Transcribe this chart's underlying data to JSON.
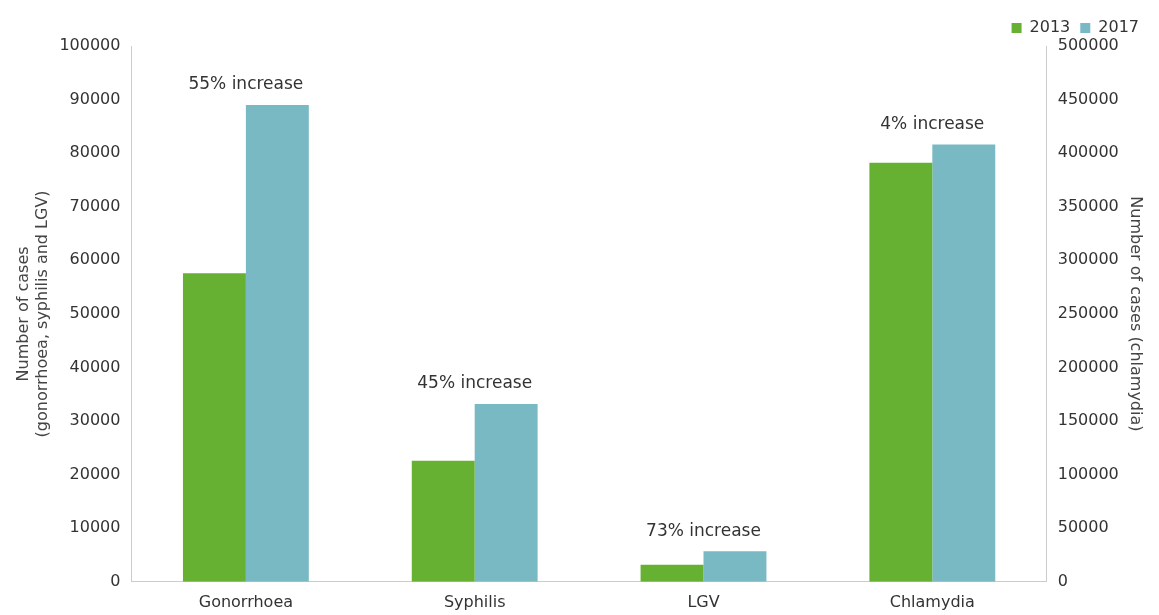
{
  "chart_data": {
    "type": "bar",
    "categories": [
      "Gonorrhoea",
      "Syphilis",
      "LGV",
      "Chlamydia"
    ],
    "ylabel": "Number of cases\n(gonorrhoea, syphilis and LGV)",
    "y2label": "Number of cases (chlamydia)",
    "ylim": [
      0,
      100000
    ],
    "yticks": [
      0,
      10000,
      20000,
      30000,
      40000,
      50000,
      60000,
      70000,
      80000,
      90000,
      100000
    ],
    "y2lim": [
      0,
      500000
    ],
    "y2ticks": [
      0,
      50000,
      100000,
      150000,
      200000,
      250000,
      300000,
      350000,
      400000,
      450000,
      500000
    ],
    "series": [
      {
        "name": "2013",
        "color": "#66b032",
        "values": [
          57600,
          22600,
          3200,
          null
        ]
      },
      {
        "name": "2017",
        "color": "#78b9c4",
        "values": [
          89000,
          33200,
          5700,
          null
        ]
      },
      {
        "color": "#66b032",
        "axis": "y2",
        "values": [
          null,
          null,
          null,
          391000
        ]
      },
      {
        "color": "#78b9c4",
        "axis": "y2",
        "values": [
          null,
          null,
          null,
          408000
        ]
      }
    ],
    "annotations": [
      "55% increase",
      "45% increase",
      "73% increase",
      "4% increase"
    ],
    "grid": false,
    "legend": "top right"
  }
}
